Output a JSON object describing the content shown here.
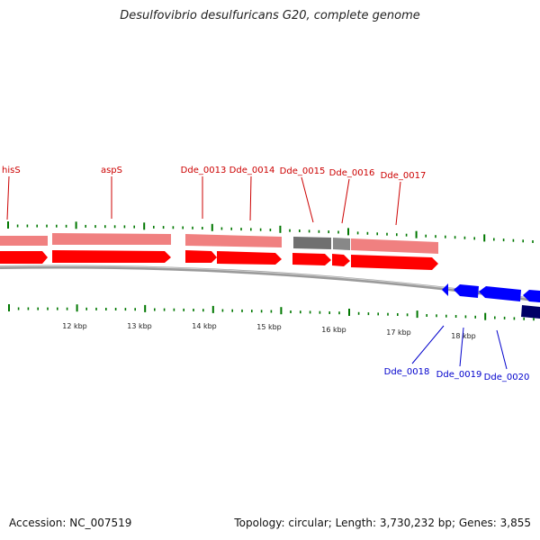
{
  "title": "Desulfovibrio desulfuricans G20, complete genome",
  "footer": {
    "accession": "Accession: NC_007519",
    "stats": "Topology: circular; Length: 3,730,232 bp; Genes: 3,855"
  },
  "colors": {
    "forward_cds": "#ff0000",
    "forward_gene": "#f08080",
    "reverse_cds": "#0000ff",
    "reverse_gene_dark": "#000066",
    "rna_gene": "#707070",
    "tick": "#007700",
    "backbone": "#9a9a9a"
  },
  "forward_labels": [
    "hisS",
    "aspS",
    "Dde_0013",
    "Dde_0014",
    "Dde_0015",
    "Dde_0016",
    "Dde_0017"
  ],
  "reverse_labels": [
    "Dde_0018",
    "Dde_0019",
    "Dde_0020"
  ],
  "kbp_labels": [
    "12 kbp",
    "13 kbp",
    "14 kbp",
    "15 kbp",
    "16 kbp",
    "17 kbp",
    "18 kbp"
  ],
  "icons": {
    "gene_arrow": "arrow-shape",
    "tick": "tick-mark"
  }
}
